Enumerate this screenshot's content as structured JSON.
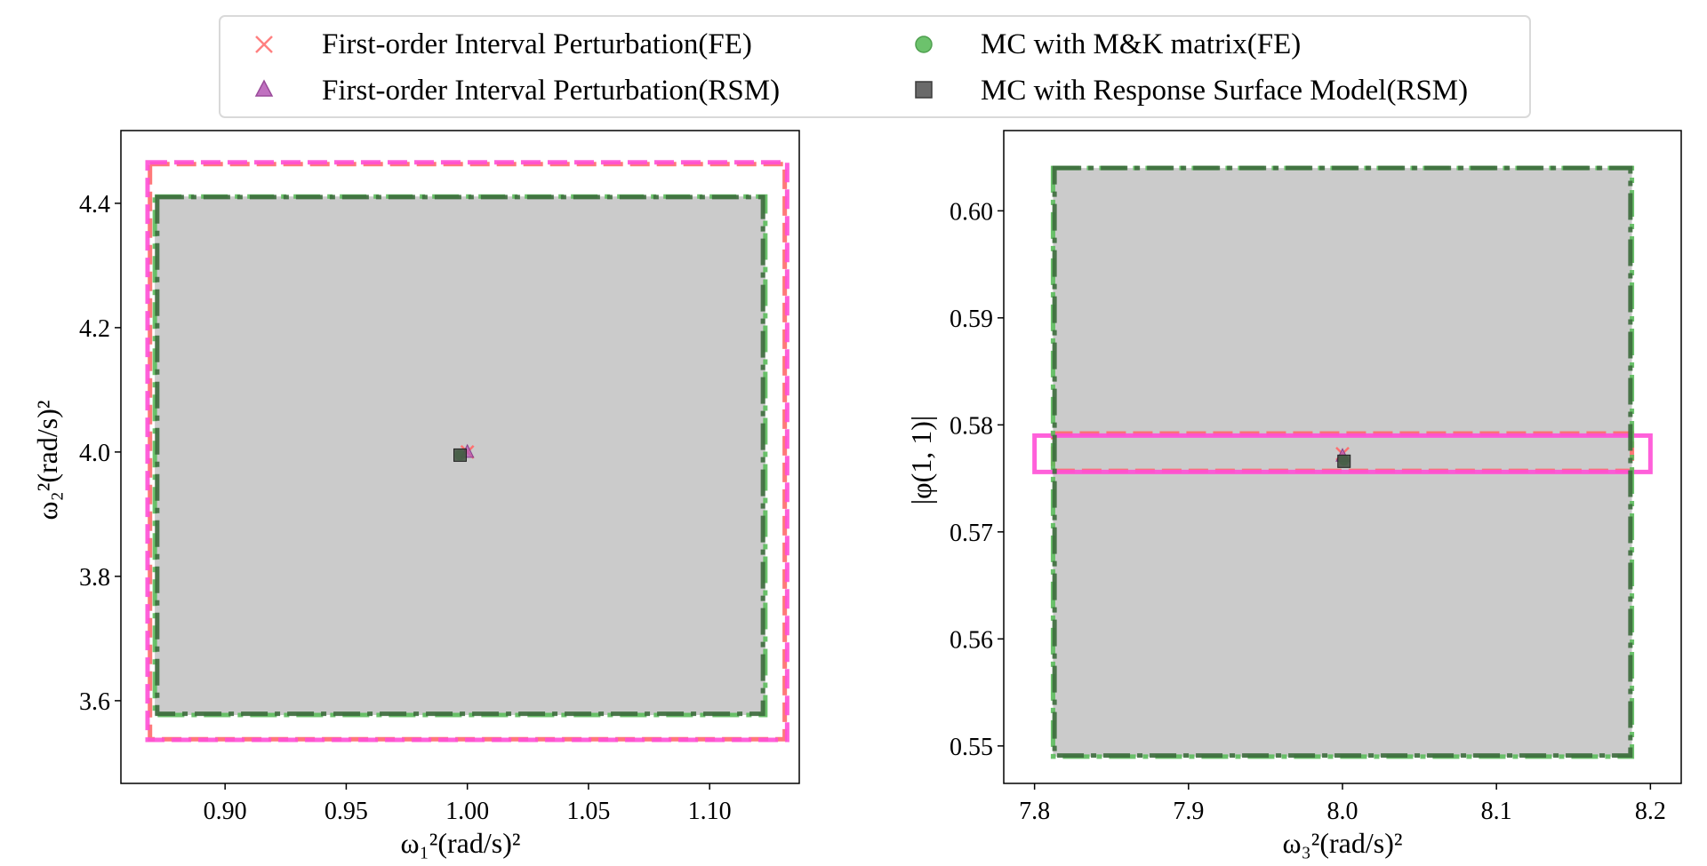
{
  "legend": {
    "items": [
      {
        "label": "First-order Interval Perturbation(FE)",
        "marker": "x",
        "color": "#ff8080"
      },
      {
        "label": "First-order Interval Perturbation(RSM)",
        "marker": "triangle",
        "color": "#c071c0"
      },
      {
        "label": "MC with M&K matrix(FE)",
        "marker": "circle",
        "color": "#6cc26c"
      },
      {
        "label": "MC with Response Surface Model(RSM)",
        "marker": "square",
        "color": "#6a6a6a"
      }
    ]
  },
  "chart_data": [
    {
      "type": "scatter",
      "xlabel": "ω₁²(rad/s)²",
      "ylabel": "ω₂²(rad/s)²",
      "xlim": [
        0.857,
        1.137
      ],
      "ylim": [
        3.467,
        4.517
      ],
      "xticks": [
        0.9,
        0.95,
        1.0,
        1.05,
        1.1
      ],
      "yticks": [
        3.6,
        3.8,
        4.0,
        4.2,
        4.4
      ],
      "xtick_labels": [
        "0.90",
        "0.95",
        "1.00",
        "1.05",
        "1.10"
      ],
      "ytick_labels": [
        "3.6",
        "3.8",
        "4.0",
        "4.2",
        "4.4"
      ],
      "fill_box": [
        0.871,
        1.123,
        3.577,
        4.411
      ],
      "boxes": [
        {
          "method": "First-order Interval Perturbation(FE)",
          "color": "#ff6a6a",
          "dash": "dashed",
          "x": [
            0.869,
            1.131
          ],
          "y": [
            3.538,
            4.463
          ]
        },
        {
          "method": "First-order Interval Perturbation(RSM)",
          "color": "#ff4fd6",
          "dash": "dashed",
          "x": [
            0.868,
            1.132
          ],
          "y": [
            3.537,
            4.466
          ]
        },
        {
          "method": "MC with M&K matrix(FE)",
          "color": "#5cbd5c",
          "dash": "dashdot",
          "x": [
            0.871,
            1.123
          ],
          "y": [
            3.577,
            4.411
          ]
        },
        {
          "method": "MC with Response Surface Model(RSM)",
          "color": "#3d6b3d",
          "dash": "dashdot",
          "x": [
            0.872,
            1.122
          ],
          "y": [
            3.579,
            4.41
          ]
        }
      ],
      "points": [
        {
          "method": "First-order Interval Perturbation(FE)",
          "marker": "x",
          "x": 1.0,
          "y": 4.0
        },
        {
          "method": "First-order Interval Perturbation(RSM)",
          "marker": "triangle",
          "x": 1.0,
          "y": 4.0
        },
        {
          "method": "MC with M&K matrix(FE)",
          "marker": "circle",
          "x": 0.997,
          "y": 3.995
        },
        {
          "method": "MC with Response Surface Model(RSM)",
          "marker": "square",
          "x": 0.997,
          "y": 3.995
        }
      ]
    },
    {
      "type": "scatter",
      "xlabel": "ω₃²(rad/s)²",
      "ylabel": "|φ(1, 1)|",
      "xlim": [
        7.78,
        8.22
      ],
      "ylim": [
        0.5465,
        0.6075
      ],
      "xticks": [
        7.8,
        7.9,
        8.0,
        8.1,
        8.2
      ],
      "yticks": [
        0.55,
        0.56,
        0.57,
        0.58,
        0.59,
        0.6
      ],
      "xtick_labels": [
        "7.8",
        "7.9",
        "8.0",
        "8.1",
        "8.2"
      ],
      "ytick_labels": [
        "0.55",
        "0.56",
        "0.57",
        "0.58",
        "0.59",
        "0.60"
      ],
      "fill_box": [
        7.812,
        8.188,
        0.549,
        0.604
      ],
      "boxes": [
        {
          "method": "First-order Interval Perturbation(FE)",
          "color": "#ff6a6a",
          "dash": "dashed",
          "x": [
            7.812,
            8.188
          ],
          "y": [
            0.5757,
            0.5792
          ]
        },
        {
          "method": "First-order Interval Perturbation(RSM)",
          "color": "#ff4fd6",
          "dash": "solid",
          "x": [
            7.8,
            8.2
          ],
          "y": [
            0.5756,
            0.579
          ]
        },
        {
          "method": "MC with M&K matrix(FE)",
          "color": "#5cbd5c",
          "dash": "dashdot",
          "x": [
            7.812,
            8.188
          ],
          "y": [
            0.549,
            0.604
          ]
        },
        {
          "method": "MC with Response Surface Model(RSM)",
          "color": "#3d6b3d",
          "dash": "dashdot",
          "x": [
            7.813,
            8.187
          ],
          "y": [
            0.5491,
            0.604
          ]
        }
      ],
      "points": [
        {
          "method": "First-order Interval Perturbation(FE)",
          "marker": "x",
          "x": 8.0,
          "y": 0.5773
        },
        {
          "method": "First-order Interval Perturbation(RSM)",
          "marker": "triangle",
          "x": 8.0,
          "y": 0.5771
        },
        {
          "method": "MC with M&K matrix(FE)",
          "marker": "circle",
          "x": 8.001,
          "y": 0.5767
        },
        {
          "method": "MC with Response Surface Model(RSM)",
          "marker": "square",
          "x": 8.001,
          "y": 0.5766
        }
      ]
    }
  ]
}
